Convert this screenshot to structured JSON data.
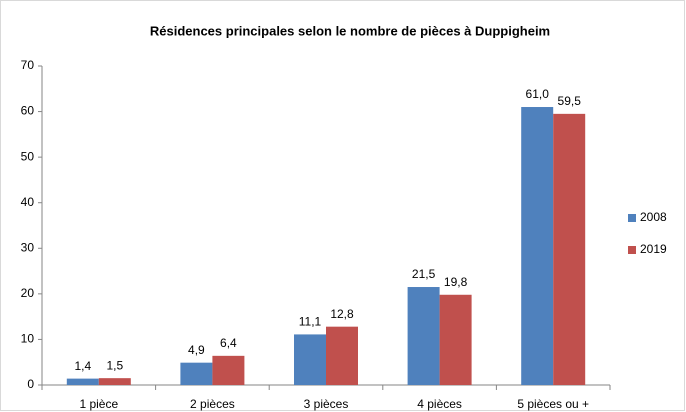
{
  "chart_data": {
    "type": "bar",
    "title": "Résidences principales selon le nombre de pièces à Duppigheim",
    "categories": [
      "1 pièce",
      "2 pièces",
      "3 pièces",
      "4 pièces",
      "5 pièces ou +"
    ],
    "series": [
      {
        "name": "2008",
        "color": "#4f81bd",
        "values": [
          1.4,
          4.9,
          11.1,
          21.5,
          61.0
        ],
        "value_labels": [
          "1,4",
          "4,9",
          "11,1",
          "21,5",
          "61,0"
        ]
      },
      {
        "name": "2019",
        "color": "#c0504d",
        "values": [
          1.5,
          6.4,
          12.8,
          19.8,
          59.5
        ],
        "value_labels": [
          "1,5",
          "6,4",
          "12,8",
          "19,8",
          "59,5"
        ]
      }
    ],
    "ylim": [
      0,
      70
    ],
    "yticks": [
      0,
      10,
      20,
      30,
      40,
      50,
      60,
      70
    ],
    "grid": false,
    "legend": "right"
  }
}
